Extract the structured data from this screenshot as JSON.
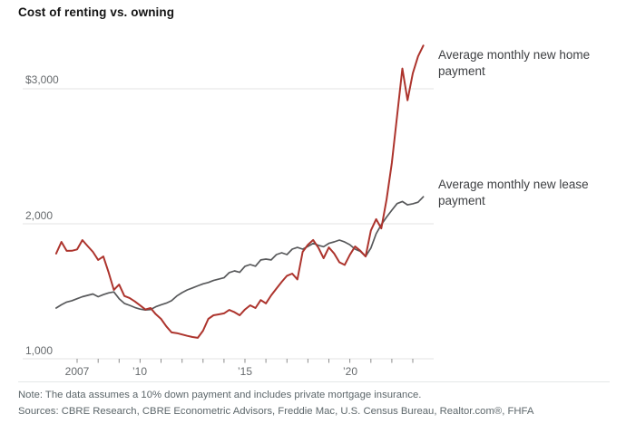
{
  "title": "Cost of renting vs. owning",
  "note": "Note: The data assumes a 10% down payment and includes private mortgage insurance.",
  "sources": "Sources: CBRE Research, CBRE Econometric Advisors, Freddie Mac, U.S. Census Bureau, Realtor.com®, FHFA",
  "chart_data": {
    "type": "line",
    "title": "Cost of renting vs. owning",
    "x_unit": "quarterly",
    "x_start": "2006 Q1",
    "x_end": "2023 Q3",
    "ylim": [
      1000,
      3400
    ],
    "grid": "horizontal-only",
    "legend_position": "right-of-line-ends",
    "y_ticks": [
      {
        "value": 3000,
        "label": "$3,000"
      },
      {
        "value": 2000,
        "label": "2,000"
      },
      {
        "value": 1000,
        "label": "1,000"
      }
    ],
    "x_ticks": {
      "first_year": 2007,
      "last_year": 2023,
      "interval_years": 1
    },
    "x_labels": [
      {
        "year": 2007,
        "text": "2007"
      },
      {
        "year": 2010,
        "text": "’10"
      },
      {
        "year": 2015,
        "text": "’15"
      },
      {
        "year": 2020,
        "text": "’20"
      }
    ],
    "series": [
      {
        "name": "Average monthly new home payment",
        "color": "#ad342d",
        "values": [
          1779,
          1866,
          1799,
          1800,
          1810,
          1879,
          1835,
          1792,
          1732,
          1758,
          1640,
          1510,
          1550,
          1465,
          1450,
          1425,
          1395,
          1365,
          1376,
          1330,
          1295,
          1240,
          1195,
          1190,
          1180,
          1170,
          1161,
          1155,
          1208,
          1295,
          1322,
          1329,
          1336,
          1362,
          1345,
          1322,
          1365,
          1396,
          1376,
          1435,
          1410,
          1470,
          1520,
          1570,
          1615,
          1631,
          1588,
          1792,
          1845,
          1880,
          1822,
          1745,
          1825,
          1780,
          1715,
          1695,
          1770,
          1832,
          1800,
          1758,
          1950,
          2034,
          1966,
          2180,
          2450,
          2800,
          3150,
          2915,
          3115,
          3240,
          3320
        ]
      },
      {
        "name": "Average monthly new lease payment",
        "color": "#58595b",
        "values": [
          1376,
          1400,
          1420,
          1430,
          1445,
          1460,
          1470,
          1480,
          1460,
          1475,
          1488,
          1495,
          1445,
          1410,
          1396,
          1380,
          1368,
          1362,
          1365,
          1385,
          1400,
          1412,
          1430,
          1465,
          1490,
          1510,
          1525,
          1540,
          1555,
          1565,
          1580,
          1590,
          1600,
          1638,
          1651,
          1640,
          1685,
          1698,
          1686,
          1732,
          1738,
          1732,
          1772,
          1785,
          1772,
          1812,
          1825,
          1812,
          1832,
          1855,
          1840,
          1830,
          1855,
          1866,
          1879,
          1865,
          1845,
          1812,
          1795,
          1758,
          1820,
          1926,
          1993,
          2050,
          2101,
          2150,
          2165,
          2140,
          2148,
          2160,
          2200
        ]
      }
    ]
  }
}
